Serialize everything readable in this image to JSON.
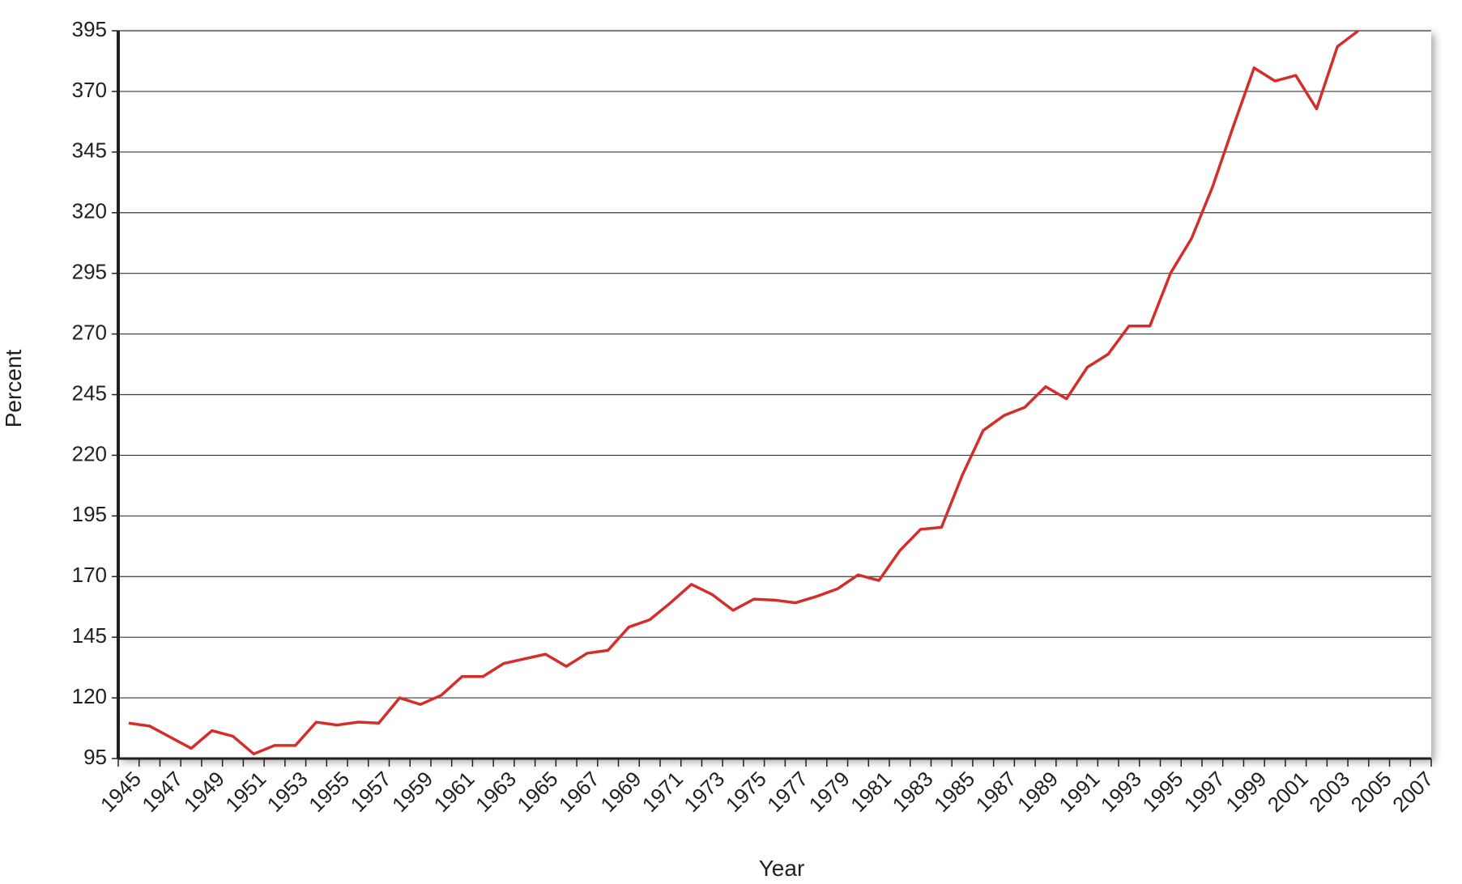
{
  "chart_data": {
    "type": "line",
    "y_label": "Percent",
    "x_label": "Year",
    "categories": [
      "1945",
      null,
      "1947",
      null,
      "1949",
      null,
      "1951",
      null,
      "1953",
      null,
      "1955",
      null,
      "1957",
      null,
      "1959",
      null,
      "1961",
      null,
      "1963",
      null,
      "1965",
      null,
      "1967",
      null,
      "1969",
      null,
      "1971",
      null,
      "1973",
      null,
      "1975",
      null,
      "1977",
      null,
      "1979",
      null,
      "1981",
      null,
      "1983",
      null,
      "1985",
      null,
      "1987",
      null,
      "1989",
      null,
      "1991",
      null,
      "1993",
      null,
      "1995",
      null,
      "1997",
      null,
      "1999",
      null,
      "2001",
      null,
      "2003",
      null,
      "2005",
      null,
      "2007"
    ],
    "values": [
      109.6,
      108.4,
      103.8,
      99.2,
      106.5,
      104.2,
      96.9,
      100.4,
      100.4,
      110,
      108.8,
      110,
      109.6,
      120,
      117.3,
      121.1,
      128.8,
      128.8,
      134.2,
      136.1,
      138,
      133,
      138.4,
      139.6,
      149.2,
      152.2,
      159.2,
      166.8,
      162.6,
      156.1,
      160.7,
      160.3,
      159.2,
      161.8,
      164.9,
      170.7,
      168.4,
      180.7,
      189.5,
      190.3,
      211.8,
      230.2,
      236.4,
      239.8,
      248.3,
      243.3,
      256.3,
      261.7,
      273.3,
      273.3,
      295.2,
      309.4,
      330.5,
      355.5,
      379.7,
      374.3,
      376.6,
      362.8,
      388.5,
      395,
      null,
      null,
      null
    ],
    "color": "#d42e2a",
    "ylim": [
      95,
      395
    ],
    "yticks": [
      95,
      120,
      145,
      170,
      195,
      220,
      245,
      270,
      295,
      320,
      345,
      370,
      395
    ],
    "grid": true
  }
}
